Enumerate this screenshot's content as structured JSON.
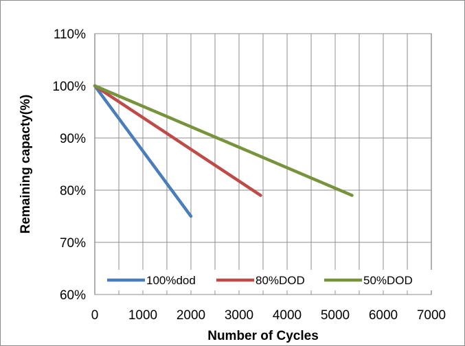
{
  "chart_data": {
    "type": "line",
    "title": "",
    "xlabel": "Number of Cycles",
    "ylabel": "Remaining capacty(%)",
    "xlim": [
      0,
      7000
    ],
    "ylim": [
      60,
      110
    ],
    "x_ticks": [
      0,
      1000,
      2000,
      3000,
      4000,
      5000,
      6000,
      7000
    ],
    "x_tick_labels": [
      "0",
      "1000",
      "2000",
      "3000",
      "4000",
      "5000",
      "6000",
      "7000"
    ],
    "y_ticks": [
      60,
      70,
      80,
      90,
      100,
      110
    ],
    "y_tick_labels": [
      "60%",
      "70%",
      "80%",
      "90%",
      "100%",
      "110%"
    ],
    "x_minor_step": 500,
    "grid": true,
    "legend_position": "bottom",
    "series": [
      {
        "name": "100%dod",
        "color": "#4a7ebb",
        "x": [
          0,
          2000
        ],
        "y": [
          100,
          75
        ]
      },
      {
        "name": "80%DOD",
        "color": "#be4b48",
        "x": [
          0,
          3450
        ],
        "y": [
          100,
          79
        ]
      },
      {
        "name": "50%DOD",
        "color": "#77933c",
        "x": [
          0,
          5350
        ],
        "y": [
          100,
          79
        ]
      }
    ]
  }
}
